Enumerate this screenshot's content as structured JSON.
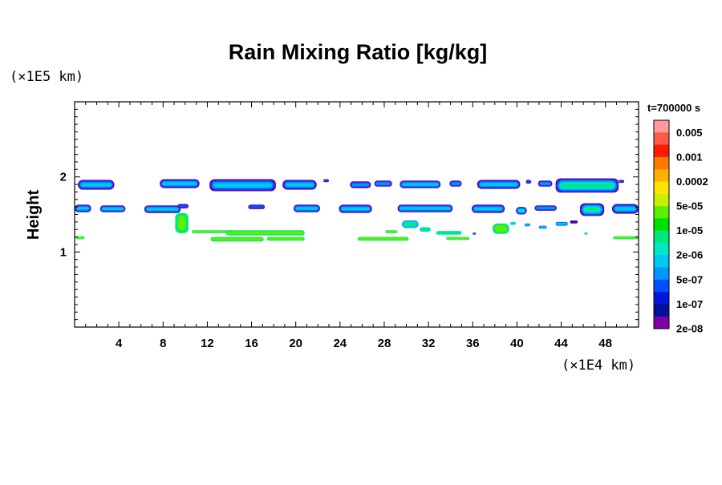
{
  "chart_data": {
    "type": "heatmap",
    "title": "Rain Mixing Ratio [kg/kg]",
    "ylabel": "Height",
    "xunit": "(×1E4 km)",
    "yunit": "(×1E5 km)",
    "time_label": "t=700000 s",
    "xlim": [
      0,
      51
    ],
    "ylim": [
      0,
      3
    ],
    "x_ticks": [
      4,
      8,
      12,
      16,
      20,
      24,
      28,
      32,
      36,
      40,
      44,
      48
    ],
    "y_ticks": [
      1,
      2
    ],
    "colorbar": {
      "labels": [
        "0.005",
        "0.001",
        "0.0002",
        "5e-05",
        "1e-05",
        "2e-06",
        "5e-07",
        "1e-07",
        "2e-08"
      ],
      "colors": [
        "#ff9a9a",
        "#ff5a46",
        "#ff1a00",
        "#ff7a00",
        "#ffb000",
        "#ffe400",
        "#c8f000",
        "#5af000",
        "#00e000",
        "#00e87a",
        "#00e6c8",
        "#00c8f0",
        "#0096ff",
        "#0050ff",
        "#0018dc",
        "#00109a",
        "#8000a8"
      ]
    },
    "levels": {
      "purple": "#6a00a0",
      "navy": "#0a14a0",
      "blue": "#0050ff",
      "sky": "#0096ff",
      "cyan": "#00c8f0",
      "teal": "#00e6c8",
      "green": "#00e87a",
      "lime": "#5af000"
    },
    "blobs": [
      {
        "x0": 0.3,
        "x1": 3.6,
        "y0": 1.83,
        "y1": 1.96,
        "layers": [
          "purple",
          "blue",
          "sky",
          "cyan"
        ]
      },
      {
        "x0": 7.7,
        "x1": 11.3,
        "y0": 1.85,
        "y1": 1.97,
        "layers": [
          "purple",
          "blue",
          "sky",
          "cyan"
        ]
      },
      {
        "x0": 12.2,
        "x1": 18.2,
        "y0": 1.81,
        "y1": 1.97,
        "layers": [
          "purple",
          "blue",
          "sky",
          "cyan"
        ]
      },
      {
        "x0": 18.8,
        "x1": 21.9,
        "y0": 1.83,
        "y1": 1.96,
        "layers": [
          "purple",
          "blue",
          "sky",
          "cyan"
        ]
      },
      {
        "x0": 22.5,
        "x1": 23.0,
        "y0": 1.93,
        "y1": 1.97,
        "layers": [
          "purple",
          "blue"
        ]
      },
      {
        "x0": 24.9,
        "x1": 26.8,
        "y0": 1.85,
        "y1": 1.94,
        "layers": [
          "purple",
          "blue",
          "sky"
        ]
      },
      {
        "x0": 27.1,
        "x1": 28.7,
        "y0": 1.87,
        "y1": 1.95,
        "layers": [
          "purple",
          "blue",
          "sky"
        ]
      },
      {
        "x0": 29.4,
        "x1": 33.1,
        "y0": 1.85,
        "y1": 1.95,
        "layers": [
          "purple",
          "blue",
          "sky",
          "cyan"
        ]
      },
      {
        "x0": 33.9,
        "x1": 35.0,
        "y0": 1.87,
        "y1": 1.95,
        "layers": [
          "purple",
          "blue",
          "sky"
        ]
      },
      {
        "x0": 36.4,
        "x1": 40.3,
        "y0": 1.84,
        "y1": 1.96,
        "layers": [
          "purple",
          "blue",
          "sky",
          "cyan"
        ]
      },
      {
        "x0": 40.8,
        "x1": 41.3,
        "y0": 1.91,
        "y1": 1.96,
        "layers": [
          "purple",
          "blue"
        ]
      },
      {
        "x0": 41.9,
        "x1": 43.2,
        "y0": 1.87,
        "y1": 1.95,
        "layers": [
          "purple",
          "blue",
          "sky"
        ]
      },
      {
        "x0": 43.5,
        "x1": 49.2,
        "y0": 1.79,
        "y1": 1.98,
        "layers": [
          "purple",
          "blue",
          "sky",
          "cyan",
          "teal",
          "green"
        ]
      },
      {
        "x0": 49.2,
        "x1": 49.7,
        "y0": 1.92,
        "y1": 1.96,
        "layers": [
          "purple",
          "blue"
        ]
      },
      {
        "x0": 0.0,
        "x1": 1.5,
        "y0": 1.53,
        "y1": 1.63,
        "layers": [
          "purple",
          "blue",
          "sky",
          "cyan"
        ]
      },
      {
        "x0": 2.3,
        "x1": 4.6,
        "y0": 1.53,
        "y1": 1.62,
        "layers": [
          "purple",
          "blue",
          "sky",
          "cyan"
        ]
      },
      {
        "x0": 6.3,
        "x1": 9.6,
        "y0": 1.52,
        "y1": 1.62,
        "layers": [
          "purple",
          "blue",
          "sky",
          "cyan"
        ]
      },
      {
        "x0": 9.3,
        "x1": 10.3,
        "y0": 1.58,
        "y1": 1.64,
        "layers": [
          "purple",
          "blue"
        ]
      },
      {
        "x0": 15.7,
        "x1": 17.2,
        "y0": 1.57,
        "y1": 1.63,
        "layers": [
          "purple",
          "blue"
        ]
      },
      {
        "x0": 19.8,
        "x1": 22.2,
        "y0": 1.53,
        "y1": 1.63,
        "layers": [
          "purple",
          "blue",
          "sky",
          "cyan"
        ]
      },
      {
        "x0": 23.9,
        "x1": 26.9,
        "y0": 1.52,
        "y1": 1.63,
        "layers": [
          "purple",
          "blue",
          "sky",
          "cyan"
        ]
      },
      {
        "x0": 29.2,
        "x1": 34.2,
        "y0": 1.53,
        "y1": 1.63,
        "layers": [
          "purple",
          "blue",
          "sky",
          "cyan"
        ]
      },
      {
        "x0": 35.9,
        "x1": 38.9,
        "y0": 1.52,
        "y1": 1.63,
        "layers": [
          "purple",
          "blue",
          "sky",
          "cyan"
        ]
      },
      {
        "x0": 39.9,
        "x1": 40.9,
        "y0": 1.5,
        "y1": 1.6,
        "layers": [
          "purple",
          "blue",
          "sky",
          "cyan",
          "teal"
        ]
      },
      {
        "x0": 41.6,
        "x1": 43.6,
        "y0": 1.55,
        "y1": 1.62,
        "layers": [
          "purple",
          "blue",
          "sky"
        ]
      },
      {
        "x0": 45.7,
        "x1": 47.9,
        "y0": 1.48,
        "y1": 1.65,
        "layers": [
          "purple",
          "blue",
          "sky",
          "cyan",
          "teal",
          "green"
        ]
      },
      {
        "x0": 48.6,
        "x1": 51.0,
        "y0": 1.51,
        "y1": 1.64,
        "layers": [
          "purple",
          "blue",
          "sky",
          "cyan"
        ]
      },
      {
        "x0": 9.1,
        "x1": 10.3,
        "y0": 1.25,
        "y1": 1.52,
        "layers": [
          "green",
          "lime"
        ]
      },
      {
        "x0": 10.6,
        "x1": 14.3,
        "y0": 1.25,
        "y1": 1.29,
        "layers": [
          "green",
          "lime"
        ]
      },
      {
        "x0": 13.7,
        "x1": 20.8,
        "y0": 1.22,
        "y1": 1.29,
        "layers": [
          "green",
          "lime"
        ]
      },
      {
        "x0": 12.3,
        "x1": 17.1,
        "y0": 1.14,
        "y1": 1.2,
        "layers": [
          "green",
          "lime"
        ]
      },
      {
        "x0": 17.4,
        "x1": 20.8,
        "y0": 1.15,
        "y1": 1.2,
        "layers": [
          "green",
          "lime"
        ]
      },
      {
        "x0": 0.1,
        "x1": 0.9,
        "y0": 1.17,
        "y1": 1.21,
        "layers": [
          "green",
          "lime"
        ]
      },
      {
        "x0": 25.6,
        "x1": 30.2,
        "y0": 1.15,
        "y1": 1.2,
        "layers": [
          "green",
          "lime"
        ]
      },
      {
        "x0": 28.1,
        "x1": 29.2,
        "y0": 1.25,
        "y1": 1.29,
        "layers": [
          "green",
          "lime"
        ]
      },
      {
        "x0": 29.6,
        "x1": 31.1,
        "y0": 1.32,
        "y1": 1.42,
        "layers": [
          "sky",
          "cyan",
          "teal",
          "green"
        ]
      },
      {
        "x0": 31.2,
        "x1": 32.2,
        "y0": 1.27,
        "y1": 1.33,
        "layers": [
          "cyan",
          "teal",
          "green"
        ]
      },
      {
        "x0": 32.7,
        "x1": 35.0,
        "y0": 1.23,
        "y1": 1.28,
        "layers": [
          "teal",
          "green"
        ]
      },
      {
        "x0": 33.6,
        "x1": 35.7,
        "y0": 1.16,
        "y1": 1.2,
        "layers": [
          "green",
          "lime"
        ]
      },
      {
        "x0": 37.8,
        "x1": 39.3,
        "y0": 1.24,
        "y1": 1.38,
        "layers": [
          "green",
          "lime"
        ]
      },
      {
        "x0": 39.4,
        "x1": 39.9,
        "y0": 1.36,
        "y1": 1.4,
        "layers": [
          "cyan",
          "green"
        ]
      },
      {
        "x0": 40.7,
        "x1": 41.2,
        "y0": 1.34,
        "y1": 1.38,
        "layers": [
          "blue",
          "cyan"
        ]
      },
      {
        "x0": 42.0,
        "x1": 42.7,
        "y0": 1.31,
        "y1": 1.35,
        "layers": [
          "blue",
          "cyan"
        ]
      },
      {
        "x0": 43.5,
        "x1": 44.6,
        "y0": 1.35,
        "y1": 1.4,
        "layers": [
          "blue",
          "cyan"
        ]
      },
      {
        "x0": 44.8,
        "x1": 45.5,
        "y0": 1.38,
        "y1": 1.42,
        "layers": [
          "navy",
          "purple"
        ]
      },
      {
        "x0": 48.7,
        "x1": 51.0,
        "y0": 1.17,
        "y1": 1.21,
        "layers": [
          "green",
          "lime"
        ]
      },
      {
        "x0": 36.0,
        "x1": 36.3,
        "y0": 1.23,
        "y1": 1.26,
        "layers": [
          "blue"
        ]
      },
      {
        "x0": 46.1,
        "x1": 46.4,
        "y0": 1.23,
        "y1": 1.26,
        "layers": [
          "green"
        ]
      }
    ]
  }
}
